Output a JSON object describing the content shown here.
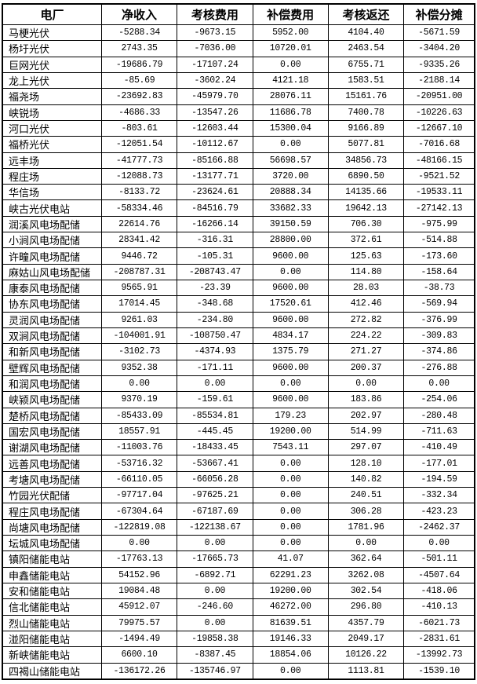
{
  "colors": {
    "border": "#000000",
    "text": "#000000",
    "background": "#ffffff"
  },
  "table": {
    "columns": [
      "电厂",
      "净收入",
      "考核费用",
      "补偿费用",
      "考核返还",
      "补偿分摊"
    ],
    "rows": [
      [
        "马梗光伏",
        "-5288.34",
        "-9673.15",
        "5952.00",
        "4104.40",
        "-5671.59"
      ],
      [
        "杨圩光伏",
        "2743.35",
        "-7036.00",
        "10720.01",
        "2463.54",
        "-3404.20"
      ],
      [
        "巨网光伏",
        "-19686.79",
        "-17107.24",
        "0.00",
        "6755.71",
        "-9335.26"
      ],
      [
        "龙上光伏",
        "-85.69",
        "-3602.24",
        "4121.18",
        "1583.51",
        "-2188.14"
      ],
      [
        "福尧场",
        "-23692.83",
        "-45979.70",
        "28076.11",
        "15161.76",
        "-20951.00"
      ],
      [
        "峡锐场",
        "-4686.33",
        "-13547.26",
        "11686.78",
        "7400.78",
        "-10226.63"
      ],
      [
        "河口光伏",
        "-803.61",
        "-12603.44",
        "15300.04",
        "9166.89",
        "-12667.10"
      ],
      [
        "福桥光伏",
        "-12051.54",
        "-10112.67",
        "0.00",
        "5077.81",
        "-7016.68"
      ],
      [
        "远丰场",
        "-41777.73",
        "-85166.88",
        "56698.57",
        "34856.73",
        "-48166.15"
      ],
      [
        "程庄场",
        "-12088.73",
        "-13177.71",
        "3720.00",
        "6890.50",
        "-9521.52"
      ],
      [
        "华信场",
        "-8133.72",
        "-23624.61",
        "20888.34",
        "14135.66",
        "-19533.11"
      ],
      [
        "峡古光伏电站",
        "-58334.46",
        "-84516.79",
        "33682.33",
        "19642.13",
        "-27142.13"
      ],
      [
        "润溪风电场配储",
        "22614.76",
        "-16266.14",
        "39150.59",
        "706.30",
        "-975.99"
      ],
      [
        "小涧风电场配储",
        "28341.42",
        "-316.31",
        "28800.00",
        "372.61",
        "-514.88"
      ],
      [
        "许疃风电场配储",
        "9446.72",
        "-105.31",
        "9600.00",
        "125.63",
        "-173.60"
      ],
      [
        "麻姑山风电场配储",
        "-208787.31",
        "-208743.47",
        "0.00",
        "114.80",
        "-158.64"
      ],
      [
        "康泰风电场配储",
        "9565.91",
        "-23.39",
        "9600.00",
        "28.03",
        "-38.73"
      ],
      [
        "协东风电场配储",
        "17014.45",
        "-348.68",
        "17520.61",
        "412.46",
        "-569.94"
      ],
      [
        "灵润风电场配储",
        "9261.03",
        "-234.80",
        "9600.00",
        "272.82",
        "-376.99"
      ],
      [
        "双涧风电场配储",
        "-104001.91",
        "-108750.47",
        "4834.17",
        "224.22",
        "-309.83"
      ],
      [
        "和新风电场配储",
        "-3102.73",
        "-4374.93",
        "1375.79",
        "271.27",
        "-374.86"
      ],
      [
        "壁辉风电场配储",
        "9352.38",
        "-171.11",
        "9600.00",
        "200.37",
        "-276.88"
      ],
      [
        "和润风电场配储",
        "0.00",
        "0.00",
        "0.00",
        "0.00",
        "0.00"
      ],
      [
        "峡颍风电场配储",
        "9370.19",
        "-159.61",
        "9600.00",
        "183.86",
        "-254.06"
      ],
      [
        "楚桥风电场配储",
        "-85433.09",
        "-85534.81",
        "179.23",
        "202.97",
        "-280.48"
      ],
      [
        "国宏风电场配储",
        "18557.91",
        "-445.45",
        "19200.00",
        "514.99",
        "-711.63"
      ],
      [
        "谢湖风电场配储",
        "-11003.76",
        "-18433.45",
        "7543.11",
        "297.07",
        "-410.49"
      ],
      [
        "远善风电场配储",
        "-53716.32",
        "-53667.41",
        "0.00",
        "128.10",
        "-177.01"
      ],
      [
        "考塘风电场配储",
        "-66110.05",
        "-66056.28",
        "0.00",
        "140.82",
        "-194.59"
      ],
      [
        "竹园光伏配储",
        "-97717.04",
        "-97625.21",
        "0.00",
        "240.51",
        "-332.34"
      ],
      [
        "程庄风电场配储",
        "-67304.64",
        "-67187.69",
        "0.00",
        "306.28",
        "-423.23"
      ],
      [
        "尚塘风电场配储",
        "-122819.08",
        "-122138.67",
        "0.00",
        "1781.96",
        "-2462.37"
      ],
      [
        "坛城风电场配储",
        "0.00",
        "0.00",
        "0.00",
        "0.00",
        "0.00"
      ],
      [
        "镇阳储能电站",
        "-17763.13",
        "-17665.73",
        "41.07",
        "362.64",
        "-501.11"
      ],
      [
        "申鑫储能电站",
        "54152.96",
        "-6892.71",
        "62291.23",
        "3262.08",
        "-4507.64"
      ],
      [
        "安和储能电站",
        "19084.48",
        "0.00",
        "19200.00",
        "302.54",
        "-418.06"
      ],
      [
        "信北储能电站",
        "45912.07",
        "-246.60",
        "46272.00",
        "296.80",
        "-410.13"
      ],
      [
        "烈山储能电站",
        "79975.57",
        "0.00",
        "81639.51",
        "4357.79",
        "-6021.73"
      ],
      [
        "湴阳储能电站",
        "-1494.49",
        "-19858.38",
        "19146.33",
        "2049.17",
        "-2831.61"
      ],
      [
        "新峡储能电站",
        "6600.10",
        "-8387.45",
        "18854.06",
        "10126.22",
        "-13992.73"
      ],
      [
        "四褐山储能电站",
        "-136172.26",
        "-135746.97",
        "0.00",
        "1113.81",
        "-1539.10"
      ]
    ]
  },
  "chart_data": {
    "type": "table",
    "title": "",
    "columns": [
      "电厂",
      "净收入",
      "考核费用",
      "补偿费用",
      "考核返还",
      "补偿分摊"
    ]
  }
}
